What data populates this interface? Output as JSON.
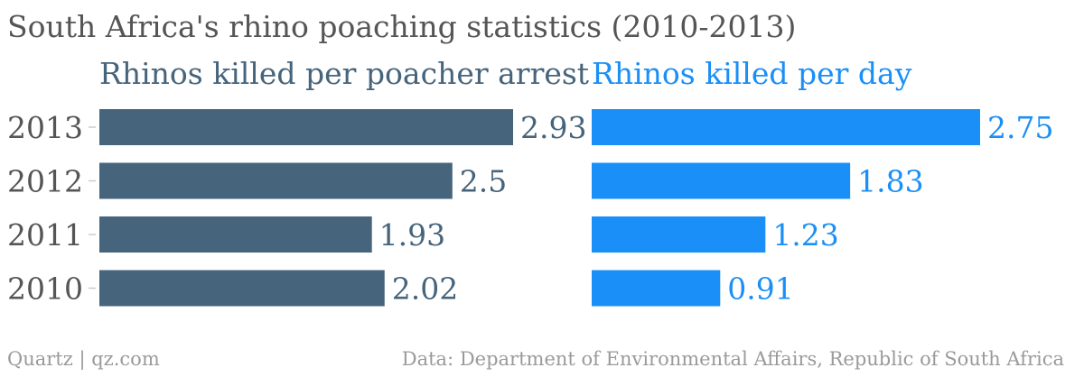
{
  "title": "South Africa's rhino poaching statistics (2010-2013)",
  "footer": {
    "source_left": "Quartz | qz.com",
    "source_right": "Data: Department of Environmental Affairs, Republic of South Africa"
  },
  "chart_data": [
    {
      "type": "bar",
      "orientation": "horizontal",
      "title": "Rhinos killed per poacher arrest",
      "color": "#46647b",
      "categories": [
        "2013",
        "2012",
        "2011",
        "2010"
      ],
      "values": [
        2.93,
        2.5,
        1.93,
        2.02
      ],
      "value_labels": [
        "2.93",
        "2.5",
        "1.93",
        "2.02"
      ],
      "xlim": [
        0,
        2.93
      ],
      "grid": false
    },
    {
      "type": "bar",
      "orientation": "horizontal",
      "title": "Rhinos killed per day",
      "color": "#1a8ff7",
      "categories": [
        "2013",
        "2012",
        "2011",
        "2010"
      ],
      "values": [
        2.75,
        1.83,
        1.23,
        0.91
      ],
      "value_labels": [
        "2.75",
        "1.83",
        "1.23",
        "0.91"
      ],
      "xlim": [
        0,
        2.75
      ],
      "grid": false
    }
  ]
}
